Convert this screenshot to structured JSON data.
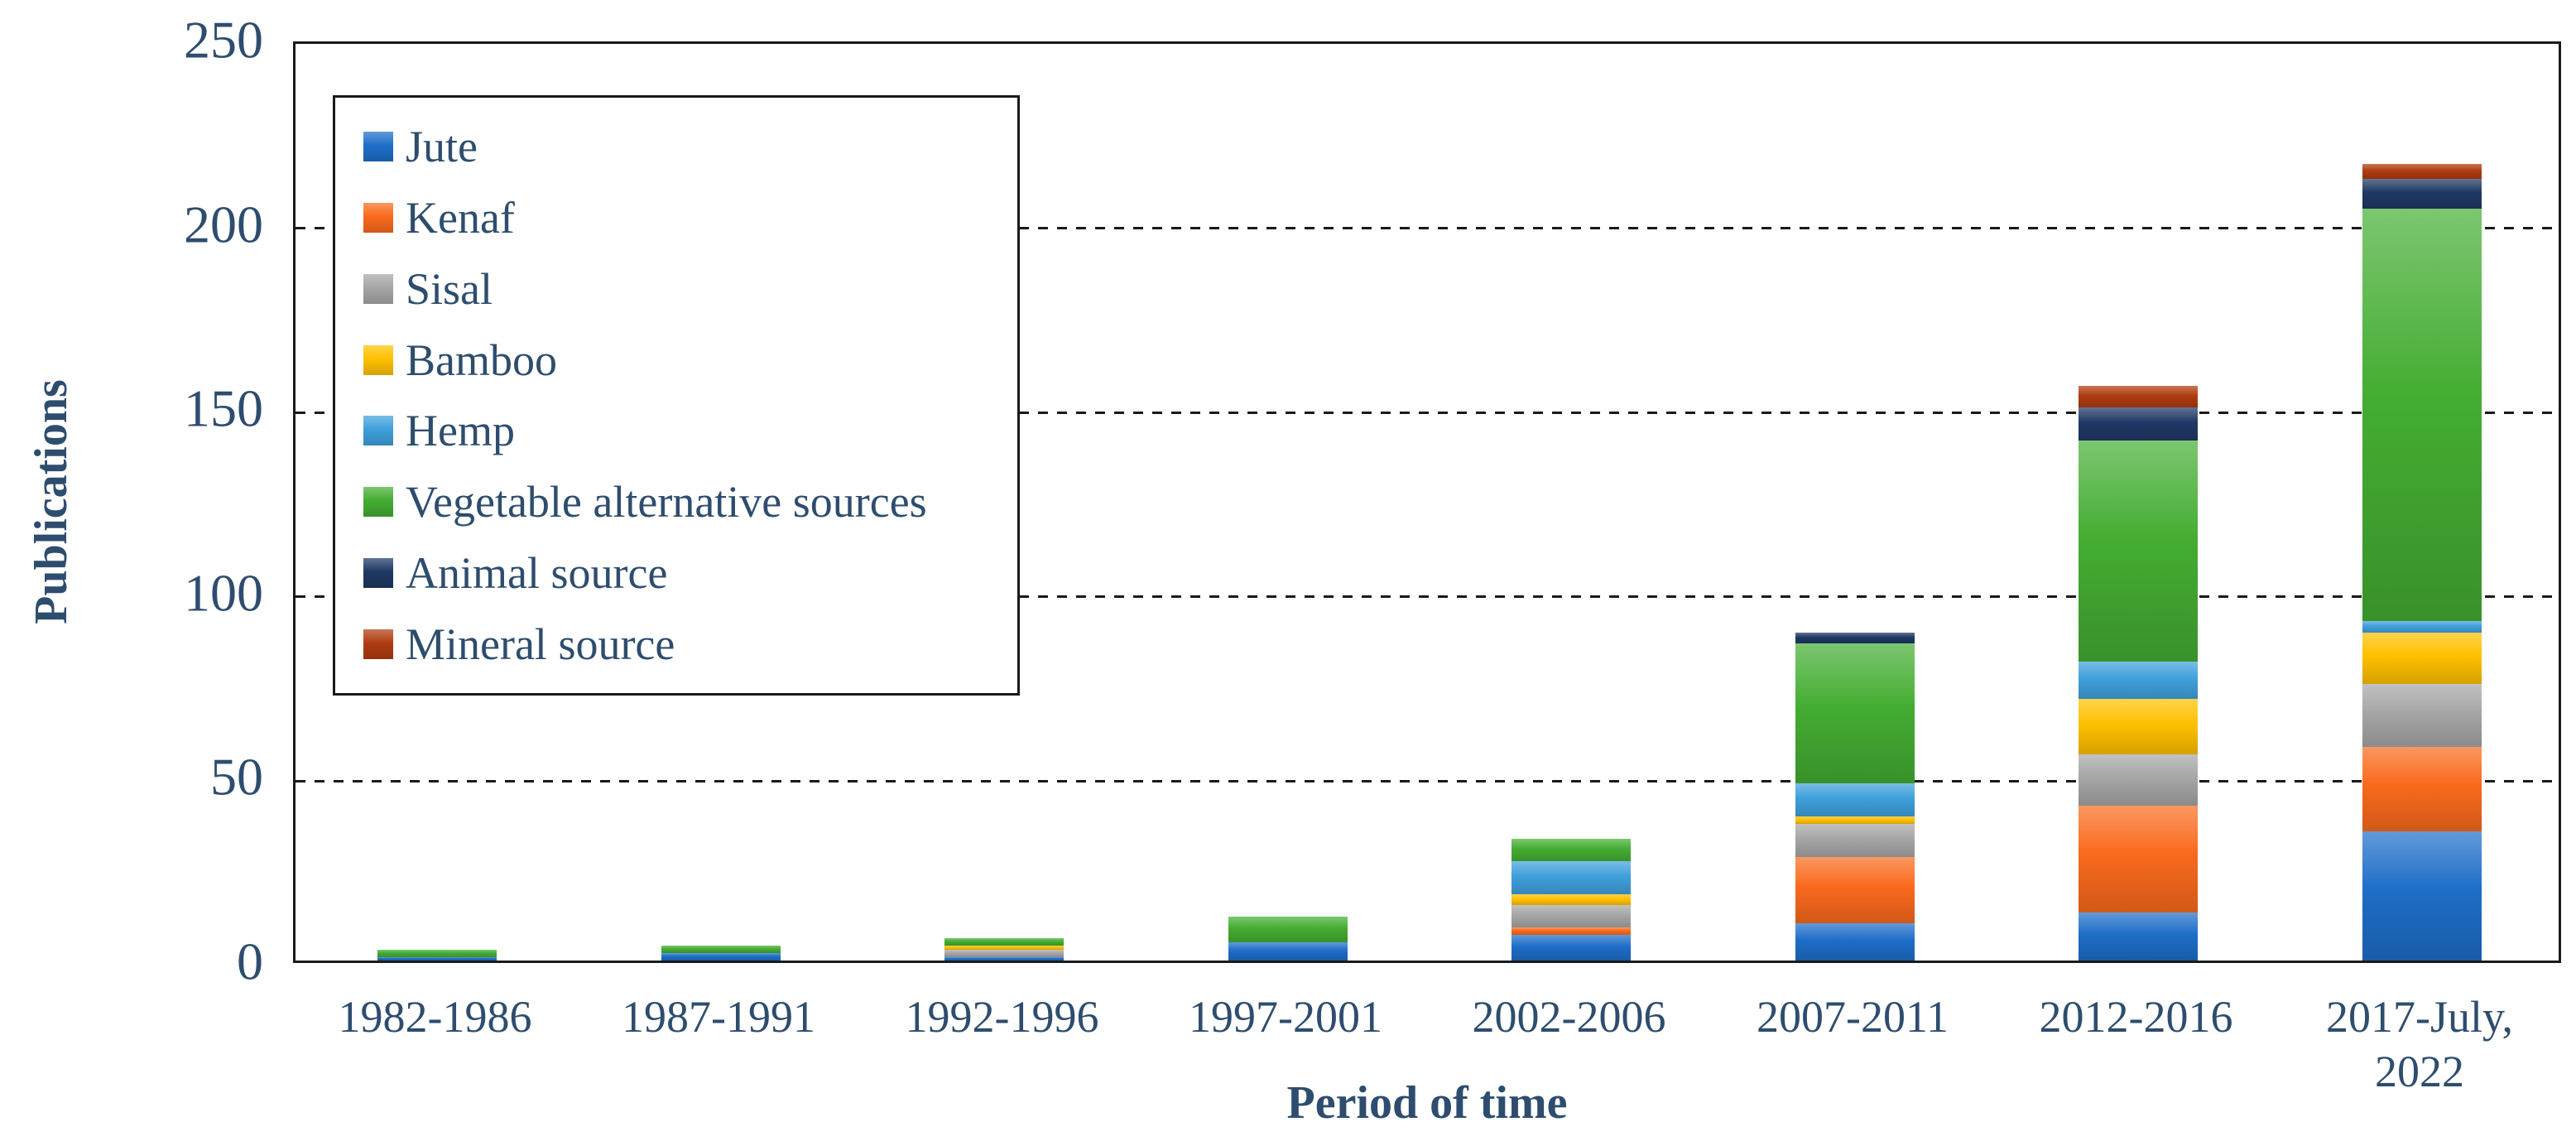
{
  "colors": {
    "text": "#2e4d6e",
    "axis_line": "#1a1a1a",
    "gridline": "#1a1a1a",
    "plot_background": "#ffffff",
    "legend_border": "#1a1a1a"
  },
  "chart_data": {
    "type": "bar",
    "stacked": true,
    "xlabel": "Period of time",
    "ylabel": "Publications",
    "ylim": [
      0,
      250
    ],
    "yticks": [
      0,
      50,
      100,
      150,
      200,
      250
    ],
    "grid": "horizontal-dashed",
    "legend_position": "upper-left-inside",
    "categories": [
      "1982-1986",
      "1987-1991",
      "1992-1996",
      "1997-2001",
      "2002-2006",
      "2007-2011",
      "2012-2016",
      "2017-July, 2022"
    ],
    "series": [
      {
        "name": "Jute",
        "color": "#1e6ec8",
        "values": [
          1,
          2,
          1,
          5,
          7,
          10,
          13,
          35
        ]
      },
      {
        "name": "Kenaf",
        "color": "#f96a1d",
        "values": [
          0,
          0,
          0,
          0,
          2,
          18,
          29,
          23
        ]
      },
      {
        "name": "Sisal",
        "color": "#a6a6a6",
        "values": [
          0,
          0,
          2,
          0,
          6,
          9,
          14,
          17
        ]
      },
      {
        "name": "Bamboo",
        "color": "#ffc000",
        "values": [
          0,
          0,
          1,
          0,
          3,
          2,
          15,
          14
        ]
      },
      {
        "name": "Hemp",
        "color": "#3fa0db",
        "values": [
          0,
          0,
          0,
          0,
          9,
          9,
          10,
          3
        ]
      },
      {
        "name": "Vegetable alternative sources",
        "color": "#44ad32",
        "values": [
          2,
          2,
          2,
          7,
          6,
          38,
          60,
          112
        ]
      },
      {
        "name": "Animal source",
        "color": "#1f3864",
        "values": [
          0,
          0,
          0,
          0,
          0,
          3,
          9,
          8
        ]
      },
      {
        "name": "Mineral source",
        "color": "#b03c10",
        "values": [
          0,
          0,
          0,
          0,
          0,
          0,
          6,
          4
        ]
      }
    ],
    "totals": [
      3,
      4,
      6,
      12,
      33,
      89,
      156,
      216
    ]
  }
}
